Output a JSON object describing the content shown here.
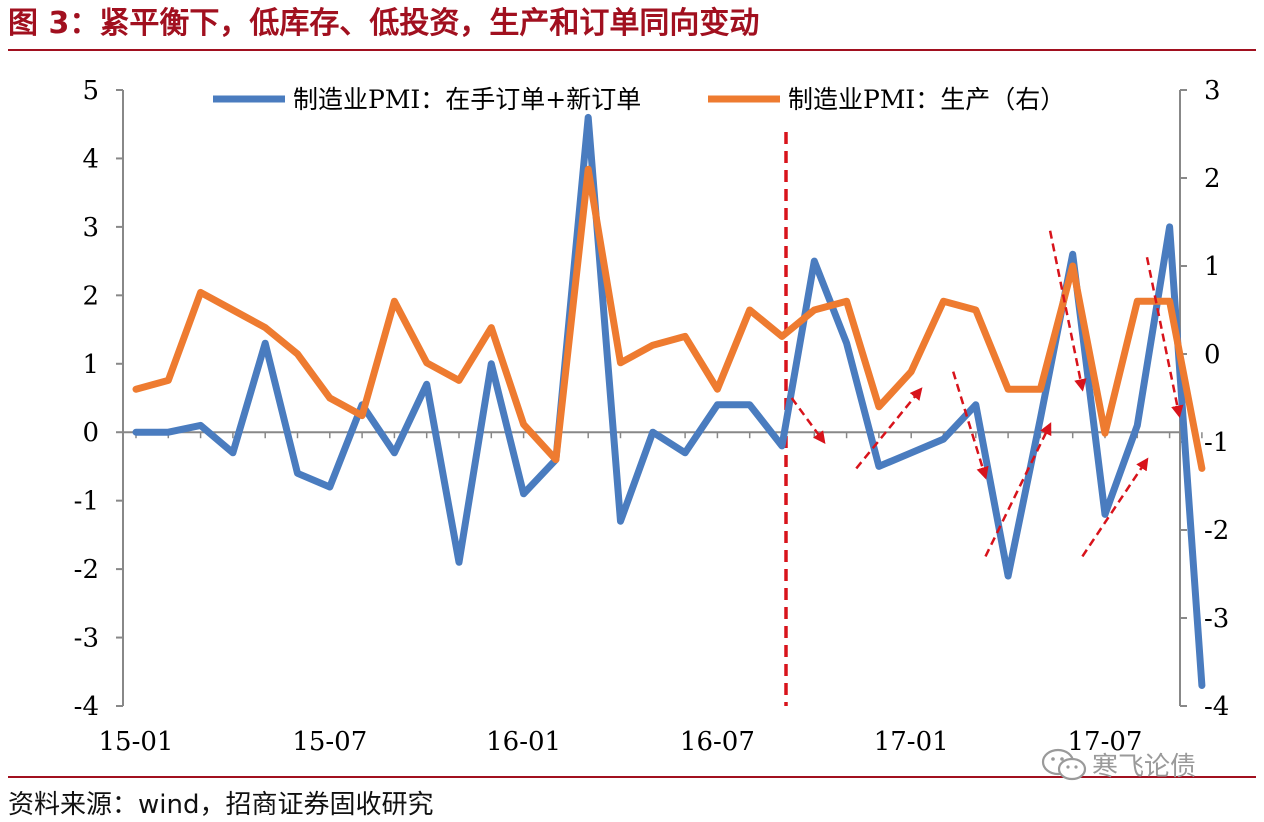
{
  "title": "图 3：紧平衡下，低库存、低投资，生产和订单同向变动",
  "source": "资料来源：wind，招商证券固收研究",
  "watermark": {
    "text": "寒飞论债",
    "icon": "wechat-icon"
  },
  "colors": {
    "brand": "#a1101f",
    "series_orders": "#4a7cbf",
    "series_production": "#ee7b30",
    "marker": "#d8131b",
    "axis": "#888888"
  },
  "chart_data": {
    "type": "line",
    "x": [
      "2015-01",
      "2015-02",
      "2015-03",
      "2015-04",
      "2015-05",
      "2015-06",
      "2015-07",
      "2015-08",
      "2015-09",
      "2015-10",
      "2015-11",
      "2015-12",
      "2016-01",
      "2016-02",
      "2016-03",
      "2016-04",
      "2016-05",
      "2016-06",
      "2016-07",
      "2016-08",
      "2016-09",
      "2016-10",
      "2016-11",
      "2016-12",
      "2017-01",
      "2017-02",
      "2017-03",
      "2017-04",
      "2017-05",
      "2017-06",
      "2017-07",
      "2017-08",
      "2017-09",
      "2017-10"
    ],
    "x_tick_labels": [
      "15-01",
      "15-07",
      "16-01",
      "16-07",
      "17-01",
      "17-07"
    ],
    "x_tick_indices": [
      0,
      6,
      12,
      18,
      24,
      30
    ],
    "series": [
      {
        "name": "制造业PMI：在手订单+新订单",
        "axis": "left",
        "color": "#4a7cbf",
        "values": [
          0.0,
          0.0,
          0.1,
          -0.3,
          1.3,
          -0.6,
          -0.8,
          0.4,
          -0.3,
          0.7,
          -1.9,
          1.0,
          -0.9,
          -0.4,
          4.6,
          -1.3,
          0.0,
          -0.3,
          0.4,
          0.4,
          -0.2,
          2.5,
          1.3,
          -0.5,
          -0.3,
          -0.1,
          0.4,
          -2.1,
          0.2,
          2.6,
          -1.2,
          0.1,
          3.0,
          -3.7
        ]
      },
      {
        "name": "制造业PMI：生产（右）",
        "axis": "right",
        "color": "#ee7b30",
        "values": [
          -0.4,
          -0.3,
          0.7,
          0.5,
          0.3,
          0.0,
          -0.5,
          -0.7,
          0.6,
          -0.1,
          -0.3,
          0.3,
          -0.8,
          -1.2,
          2.1,
          -0.1,
          0.1,
          0.2,
          -0.4,
          0.5,
          0.2,
          0.5,
          0.6,
          -0.6,
          -0.2,
          0.6,
          0.5,
          -0.4,
          -0.4,
          1.0,
          -0.9,
          0.6,
          0.6,
          -1.3
        ]
      }
    ],
    "y_left": {
      "ylim": [
        -4,
        5
      ],
      "ticks": [
        "-4",
        "-3",
        "-2",
        "-1",
        "0",
        "1",
        "2",
        "3",
        "4",
        "5"
      ]
    },
    "y_right": {
      "ylim": [
        -4,
        3
      ],
      "ticks": [
        "-4",
        "-3",
        "-2",
        "-1",
        "0",
        "1",
        "2",
        "3"
      ]
    },
    "legend": "top",
    "grid": false,
    "annotations": {
      "vertical_marker_at": "2016-09",
      "arrows": [
        {
          "from": [
            "2016-09",
            -0.5
          ],
          "to": [
            "2016-10",
            -1.0
          ],
          "note": "down"
        },
        {
          "from": [
            "2016-11",
            -1.3
          ],
          "to": [
            "2017-01",
            -0.4
          ],
          "note": "up"
        },
        {
          "from": [
            "2017-02",
            -0.2
          ],
          "to": [
            "2017-03",
            -1.4
          ],
          "note": "down"
        },
        {
          "from": [
            "2017-03",
            -2.3
          ],
          "to": [
            "2017-05",
            -0.8
          ],
          "note": "up"
        },
        {
          "from": [
            "2017-05",
            1.4
          ],
          "to": [
            "2017-06",
            -0.4
          ],
          "note": "down"
        },
        {
          "from": [
            "2017-06",
            -2.3
          ],
          "to": [
            "2017-08",
            -1.2
          ],
          "note": "up"
        },
        {
          "from": [
            "2017-08",
            1.1
          ],
          "to": [
            "2017-09",
            -0.7
          ],
          "note": "down"
        }
      ]
    }
  }
}
